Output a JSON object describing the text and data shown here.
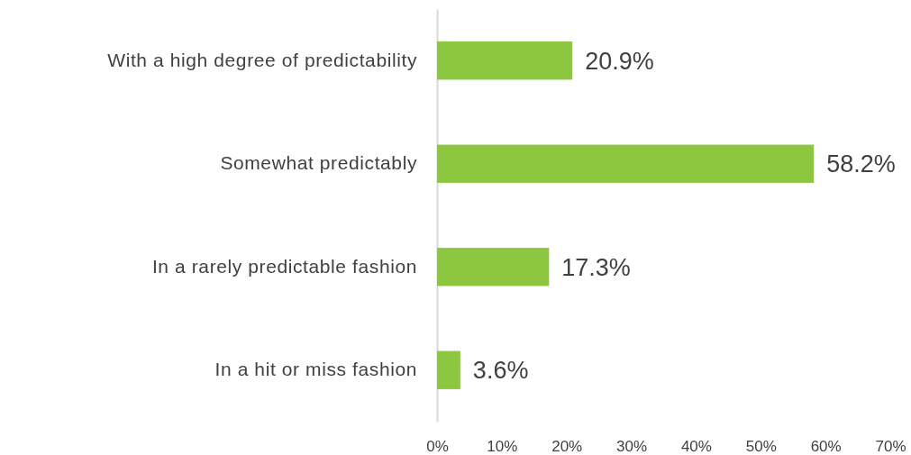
{
  "chart_data": {
    "type": "bar",
    "orientation": "horizontal",
    "categories": [
      "With a high degree of predictability",
      "Somewhat predictably",
      "In a rarely predictable fashion",
      "In a hit or miss fashion"
    ],
    "values": [
      20.9,
      58.2,
      17.3,
      3.6
    ],
    "value_labels": [
      "20.9%",
      "58.2%",
      "17.3%",
      "3.6%"
    ],
    "color": "#8dc63f",
    "xlim": [
      0,
      70
    ],
    "xticks": [
      {
        "value": 0,
        "label": "0%"
      },
      {
        "value": 10,
        "label": "10%"
      },
      {
        "value": 20,
        "label": "20%"
      },
      {
        "value": 30,
        "label": "30%"
      },
      {
        "value": 40,
        "label": "40%"
      },
      {
        "value": 50,
        "label": "50%"
      },
      {
        "value": 60,
        "label": "60%"
      },
      {
        "value": 70,
        "label": "70%"
      }
    ]
  }
}
